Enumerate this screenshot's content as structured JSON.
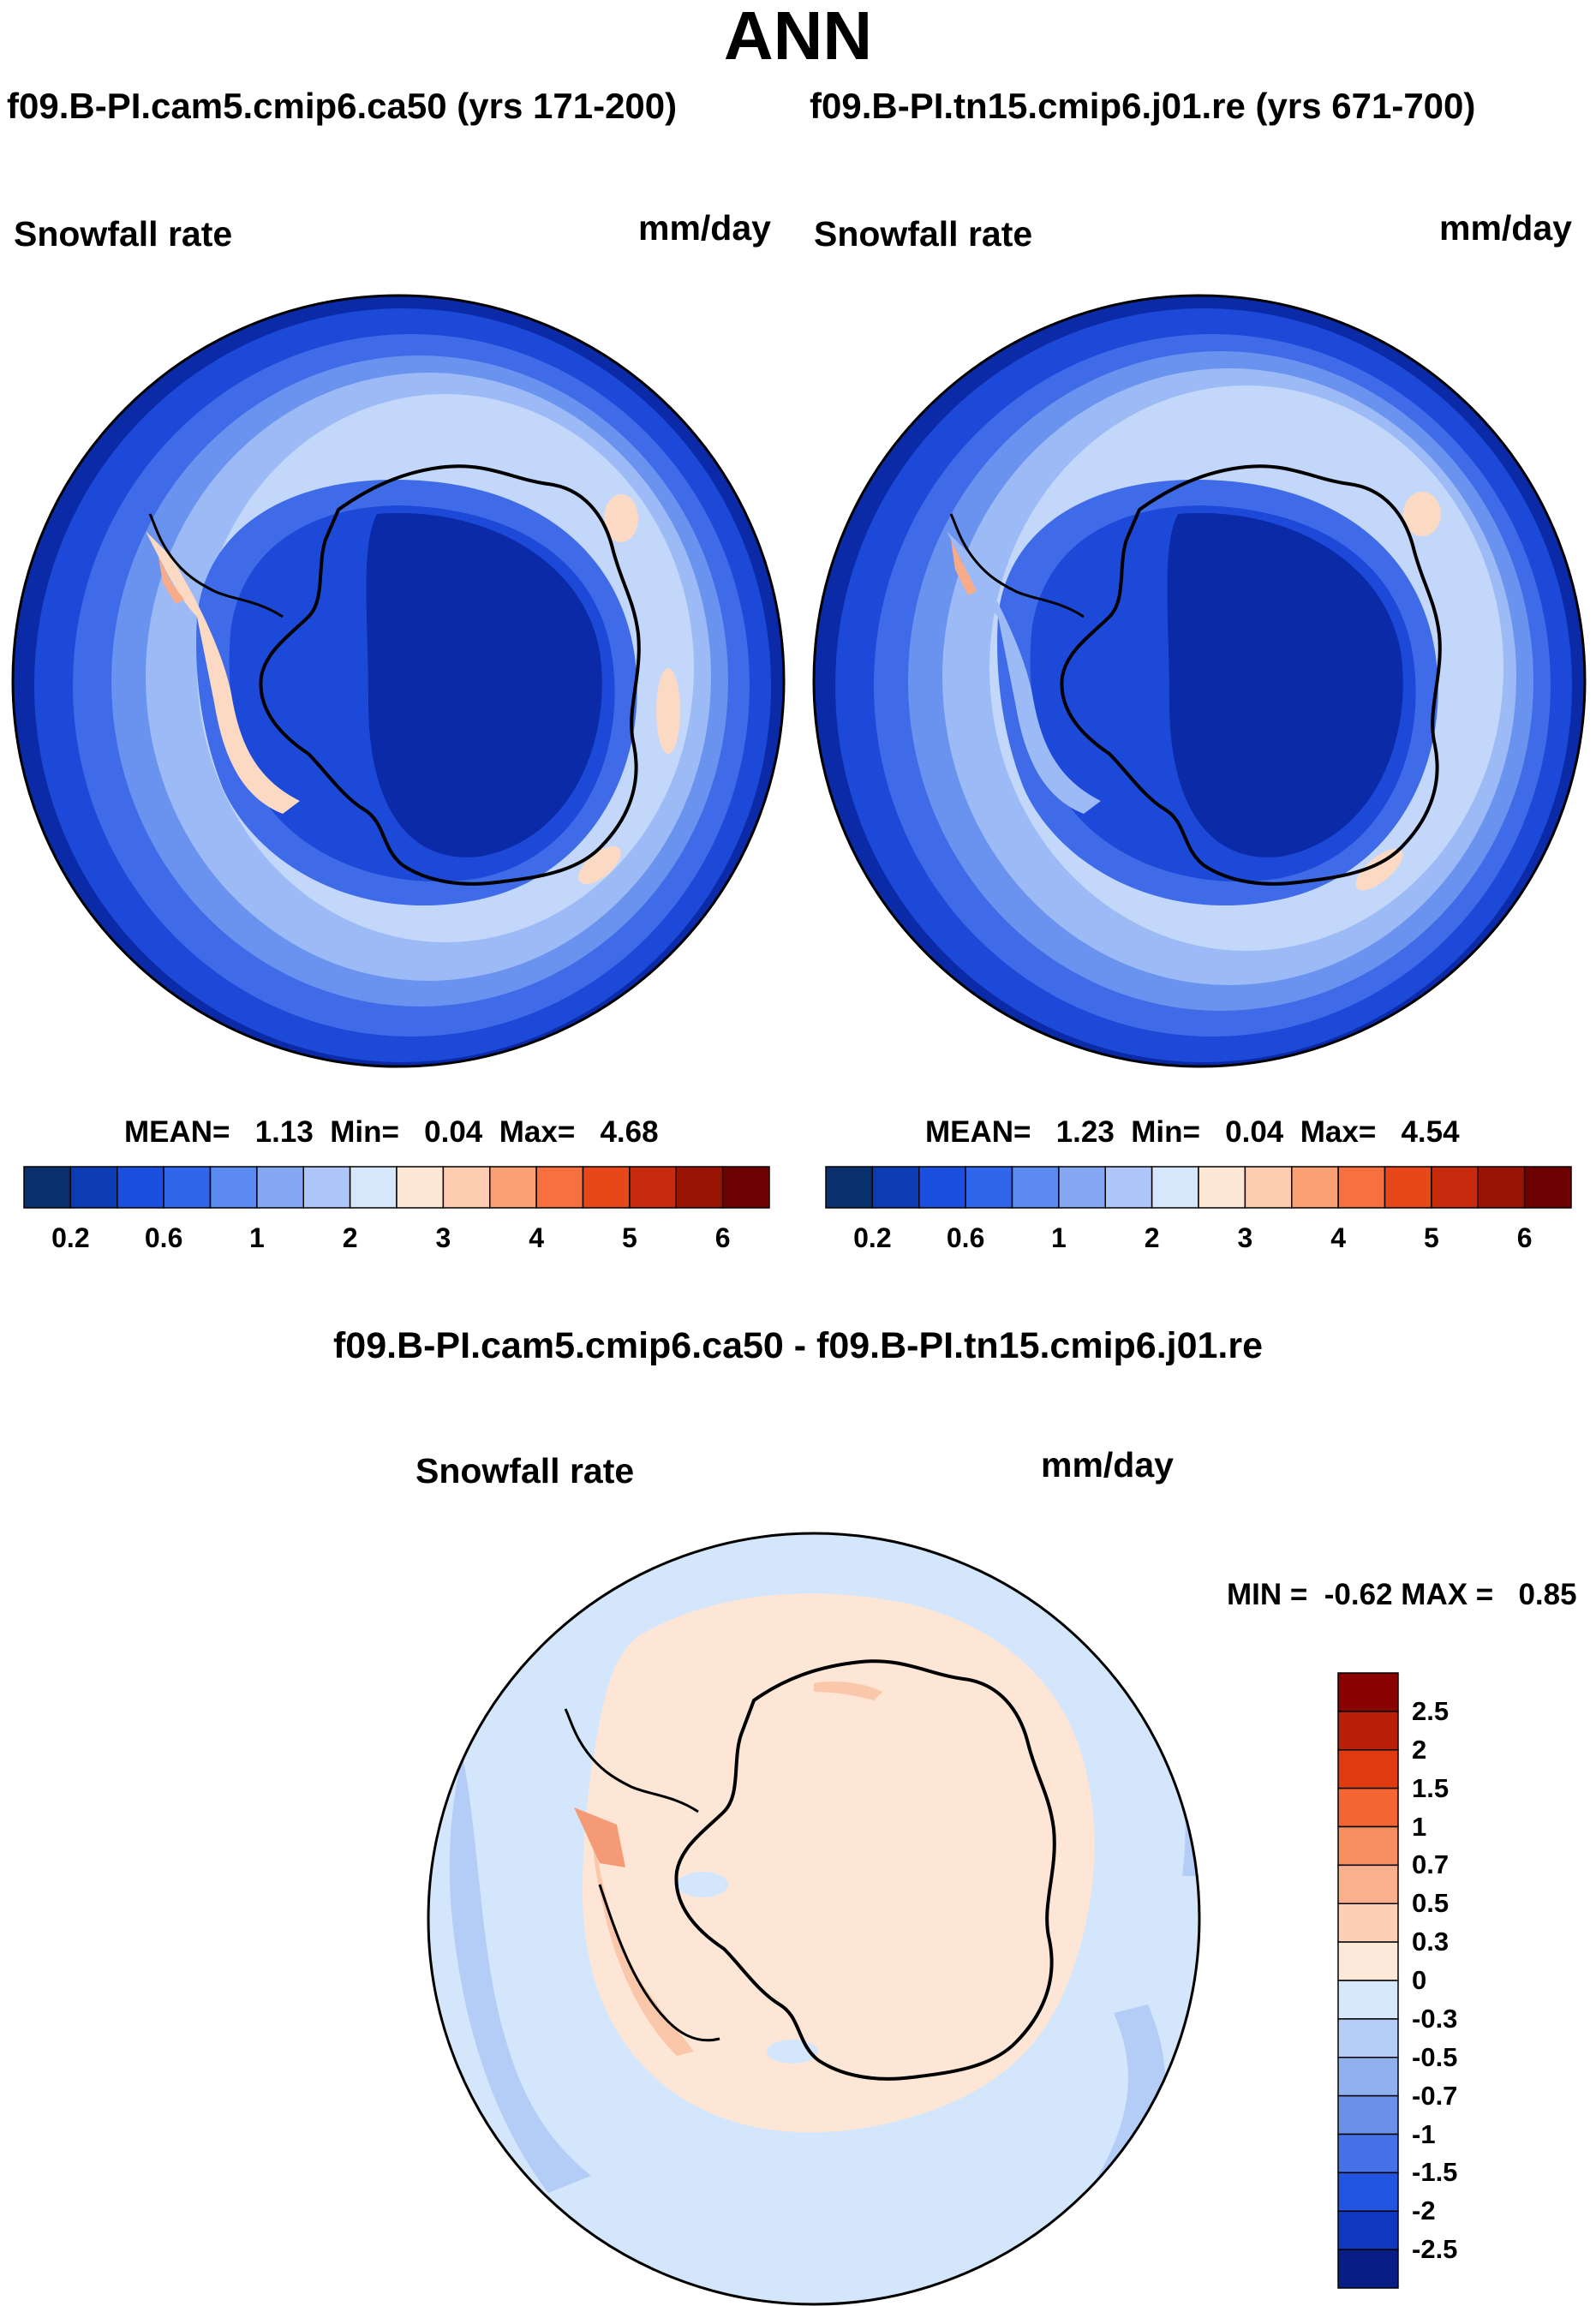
{
  "page": {
    "season": "ANN",
    "case1_title": "f09.B-PI.cam5.cmip6.ca50 (yrs 171-200)",
    "case2_title": "f09.B-PI.tn15.cmip6.j01.re (yrs 671-700)",
    "diff_title": "f09.B-PI.cam5.cmip6.ca50 - f09.B-PI.tn15.cmip6.j01.re"
  },
  "panels": [
    {
      "variable": "Snowfall rate",
      "units": "mm/day",
      "mean_label": "MEAN=",
      "mean": "1.13",
      "min_label": "Min=",
      "min": "0.04",
      "max_label": "Max=",
      "max": "4.68"
    },
    {
      "variable": "Snowfall rate",
      "units": "mm/day",
      "mean_label": "MEAN=",
      "mean": "1.23",
      "min_label": "Min=",
      "min": "0.04",
      "max_label": "Max=",
      "max": "4.54"
    }
  ],
  "diff_panel": {
    "variable": "Snowfall rate",
    "units": "mm/day",
    "min_label": "MIN =",
    "min": "-0.62",
    "max_label": "MAX =",
    "max": "0.85"
  },
  "colorbar_main": {
    "colors": [
      "#08306b",
      "#0b3bb5",
      "#1a4fe0",
      "#2f66ec",
      "#5b8af0",
      "#86a8f2",
      "#aec6f8",
      "#d6e7fb",
      "#fde8d6",
      "#fccbb0",
      "#fb9f75",
      "#f7703f",
      "#e8471a",
      "#c72a0c",
      "#9a1405",
      "#6e0202"
    ],
    "tick_labels": [
      "0.2",
      "0.6",
      "1",
      "2",
      "3",
      "4",
      "5",
      "6"
    ]
  },
  "colorbar_diff": {
    "colors": [
      "#8b0000",
      "#b8200a",
      "#e03a10",
      "#f46534",
      "#f78e5f",
      "#fab08c",
      "#fdd0b6",
      "#fde9d9",
      "#d7e8fb",
      "#b6cdf6",
      "#91b0f0",
      "#6b90ea",
      "#4572e6",
      "#2354df",
      "#0f38c0",
      "#081d86"
    ],
    "tick_labels": [
      "2.5",
      "2",
      "1.5",
      "1",
      "0.7",
      "0.5",
      "0.3",
      "0",
      "-0.3",
      "-0.5",
      "-0.7",
      "-1",
      "-1.5",
      "-2",
      "-2.5"
    ]
  },
  "map_colors": {
    "deep": "#0a2aa8",
    "dark": "#1d49d8",
    "mid": "#3f6be8",
    "medium": "#6a92ef",
    "light": "#9cbaf5",
    "pale": "#c3d7fa",
    "palest": "#dde9fc",
    "warm": "#fcd9c2",
    "warm2": "#f8ab88",
    "diff_pos": "#fde6d5",
    "diff_pos2": "#fbc7aa",
    "diff_pos3": "#f59a77",
    "diff_neg1": "#d4e6fb",
    "diff_neg2": "#b4cdf7",
    "diff_neg3": "#8fb0f1",
    "coast": "#000000"
  }
}
